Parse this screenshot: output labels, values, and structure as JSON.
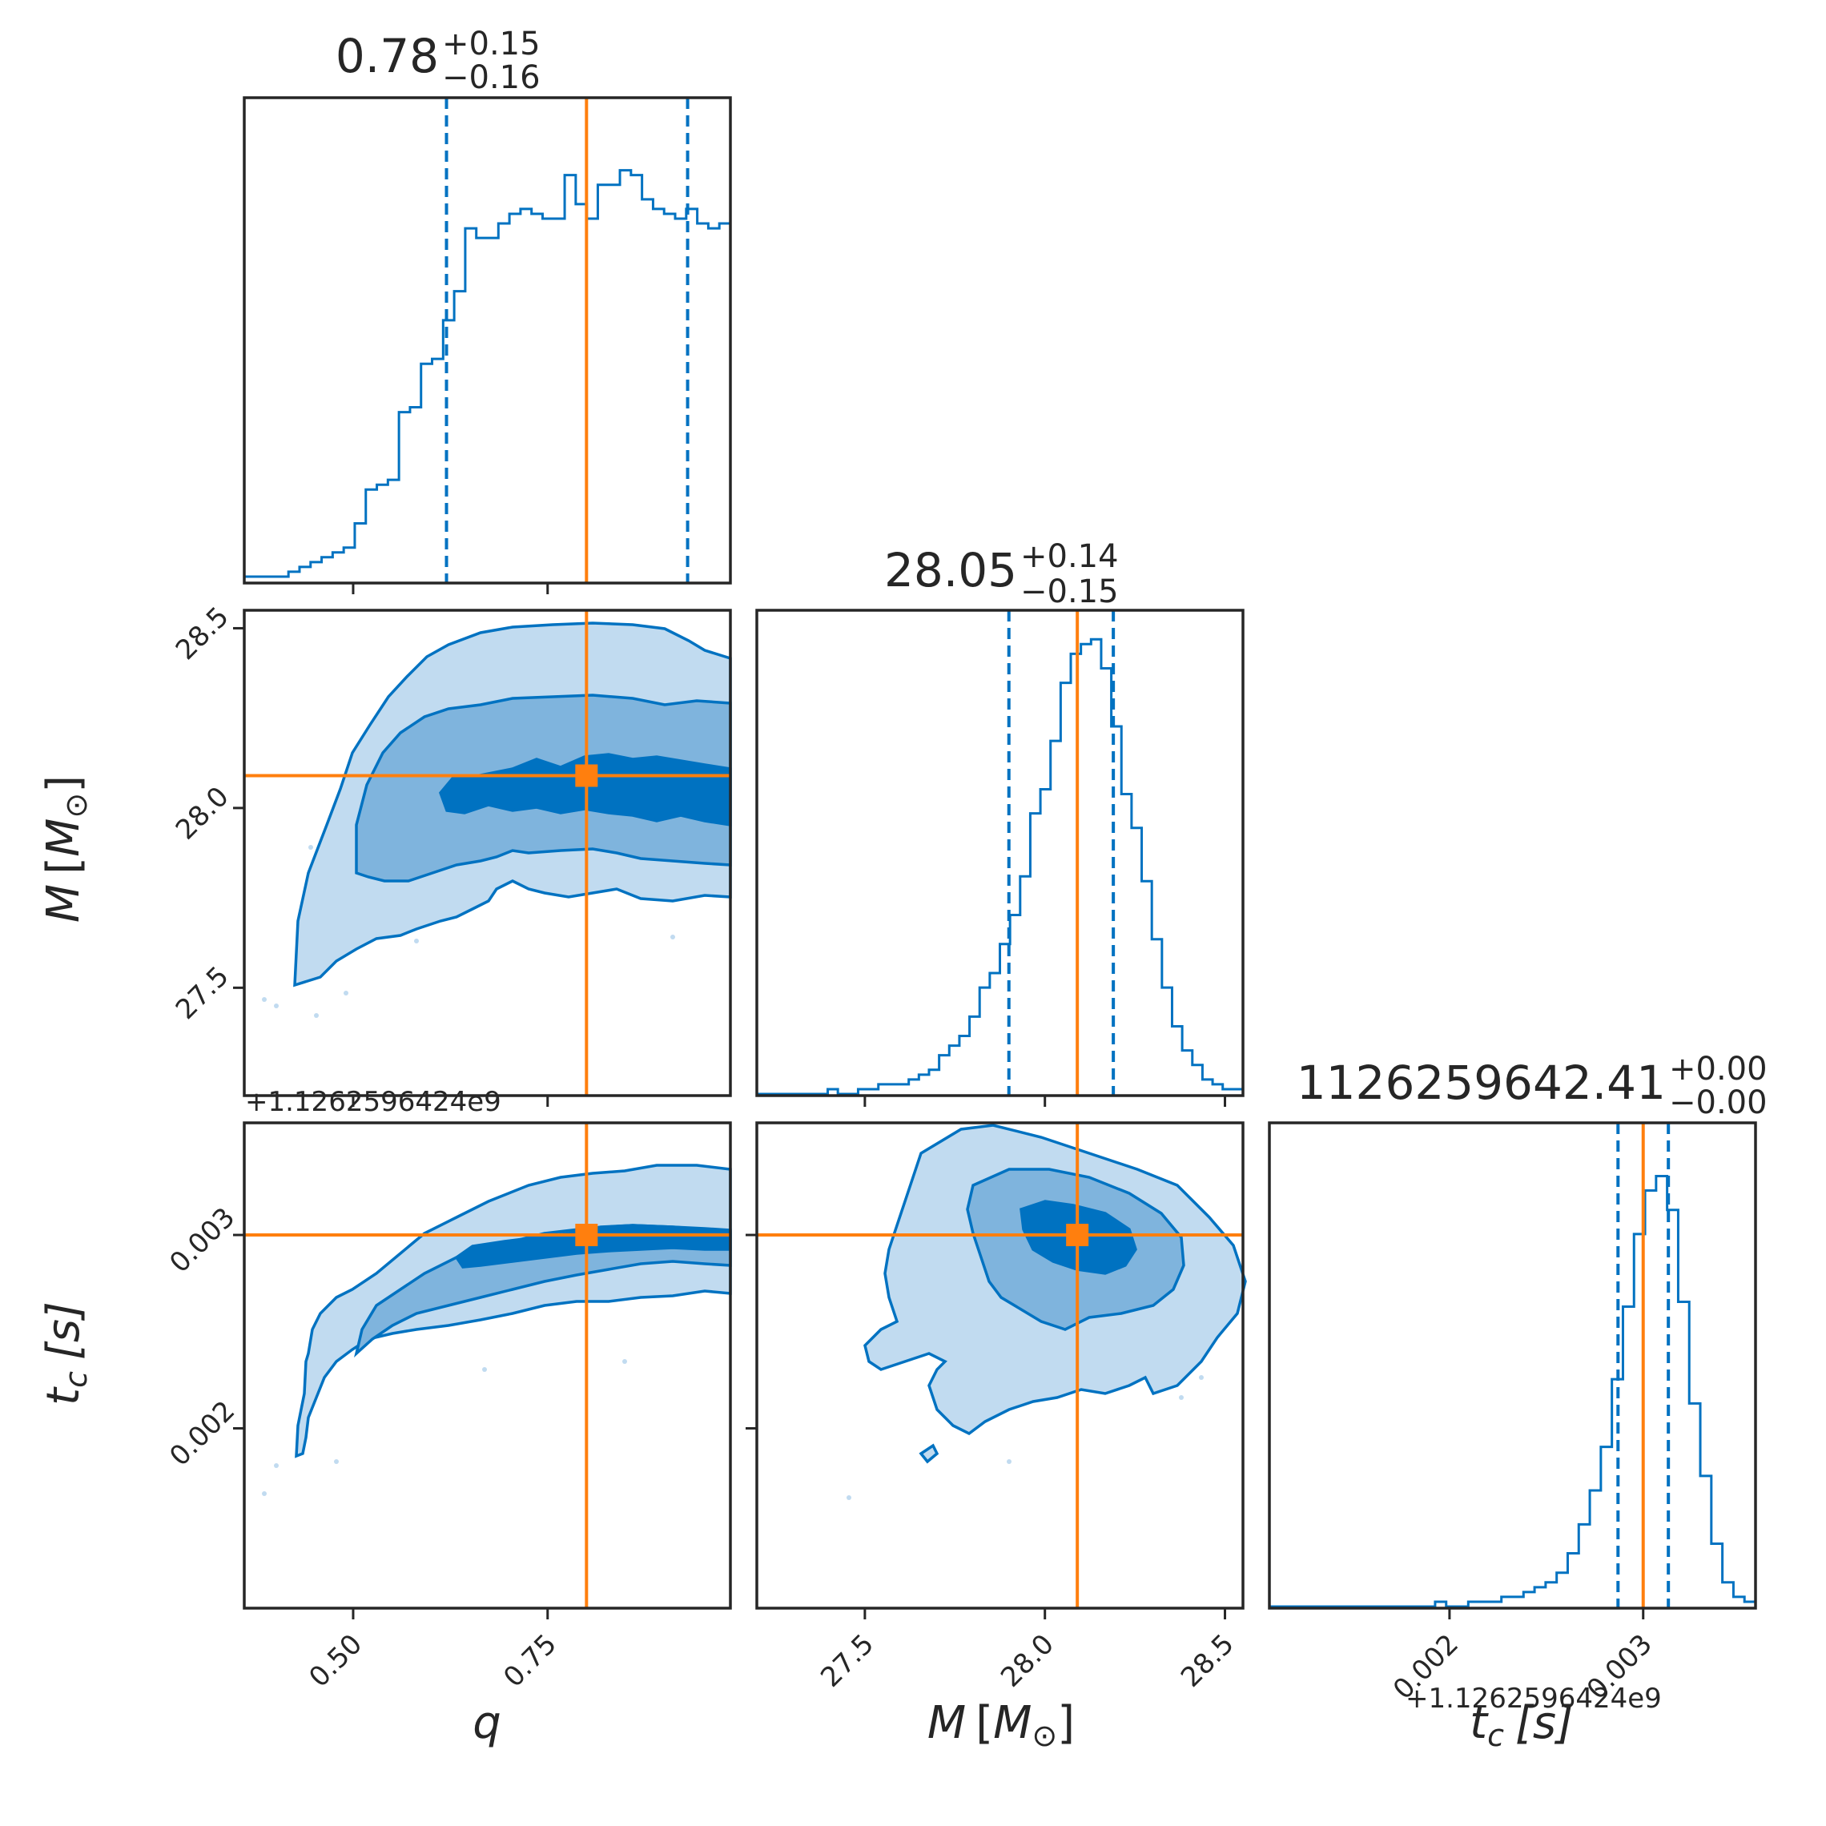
{
  "colors": {
    "hist": "#0072c1",
    "truth": "#ff7f0e",
    "fill_outer": "#c1dbf0",
    "fill_mid": "#7fb4dd",
    "fill_inner": "#0072c1",
    "frame": "#262626"
  },
  "chart_data": {
    "type": "corner",
    "parameters": [
      {
        "name": "q",
        "label": "q",
        "range": [
          0.36,
          0.985
        ],
        "truth": 0.8,
        "median": 0.78,
        "lo": 0.62,
        "hi": 0.93,
        "title": {
          "main": "0.78",
          "plus": "+0.15",
          "minus": "−0.16"
        },
        "ticks": [
          0.5,
          0.75
        ],
        "tick_labels": [
          "0.50",
          "0.75"
        ]
      },
      {
        "name": "M",
        "label": "M [M⊙]",
        "range": [
          27.2,
          28.55
        ],
        "truth": 28.09,
        "median": 28.05,
        "lo": 27.9,
        "hi": 28.19,
        "title": {
          "main": "28.05",
          "plus": "+0.14",
          "minus": "−0.15"
        },
        "ticks": [
          27.5,
          28.0,
          28.5
        ],
        "tick_labels": [
          "27.5",
          "28.0",
          "28.5"
        ]
      },
      {
        "name": "tc",
        "label": "tc [s]",
        "range": [
          0.00107,
          0.00358
        ],
        "truth": 0.003,
        "median": 0.003,
        "lo": 0.00287,
        "hi": 0.00313,
        "title": {
          "main": "1126259642.41",
          "plus": "+0.00",
          "minus": "−0.00"
        },
        "ticks": [
          0.002,
          0.003
        ],
        "tick_labels": [
          "0.002",
          "0.003"
        ],
        "offset_label": "+1.1262596424e9"
      }
    ],
    "histograms": {
      "q": [
        0.01,
        0.01,
        0.01,
        0.01,
        0.02,
        0.03,
        0.04,
        0.05,
        0.06,
        0.07,
        0.12,
        0.19,
        0.2,
        0.21,
        0.35,
        0.36,
        0.45,
        0.46,
        0.54,
        0.6,
        0.73,
        0.71,
        0.71,
        0.74,
        0.76,
        0.77,
        0.76,
        0.75,
        0.75,
        0.84,
        0.78,
        0.75,
        0.82,
        0.82,
        0.85,
        0.84,
        0.79,
        0.77,
        0.76,
        0.75,
        0.77,
        0.74,
        0.73,
        0.74
      ],
      "M": [
        0.0,
        0.0,
        0.0,
        0.0,
        0.0,
        0.0,
        0.0,
        0.01,
        0.0,
        0.0,
        0.01,
        0.01,
        0.02,
        0.02,
        0.02,
        0.03,
        0.04,
        0.05,
        0.08,
        0.1,
        0.12,
        0.16,
        0.22,
        0.25,
        0.31,
        0.37,
        0.45,
        0.58,
        0.63,
        0.73,
        0.85,
        0.91,
        0.93,
        0.94,
        0.88,
        0.76,
        0.62,
        0.55,
        0.44,
        0.32,
        0.22,
        0.14,
        0.09,
        0.06,
        0.03,
        0.02,
        0.01,
        0.01
      ],
      "tc": [
        0.0,
        0.0,
        0.0,
        0.0,
        0.0,
        0.0,
        0.0,
        0.0,
        0.0,
        0.0,
        0.0,
        0.0,
        0.0,
        0.0,
        0.0,
        0.01,
        0.0,
        0.0,
        0.01,
        0.01,
        0.01,
        0.02,
        0.02,
        0.03,
        0.04,
        0.05,
        0.07,
        0.11,
        0.17,
        0.24,
        0.33,
        0.47,
        0.62,
        0.77,
        0.86,
        0.89,
        0.82,
        0.63,
        0.42,
        0.27,
        0.13,
        0.05,
        0.02,
        0.01
      ]
    }
  },
  "axis_labels": {
    "q": "q",
    "M_var": "M",
    "M_open": "[",
    "M_sym": "M",
    "M_sub": "⊙",
    "M_close": "]",
    "tc_var": "t",
    "tc_sub": "c",
    "tc_unit": "[s]"
  }
}
